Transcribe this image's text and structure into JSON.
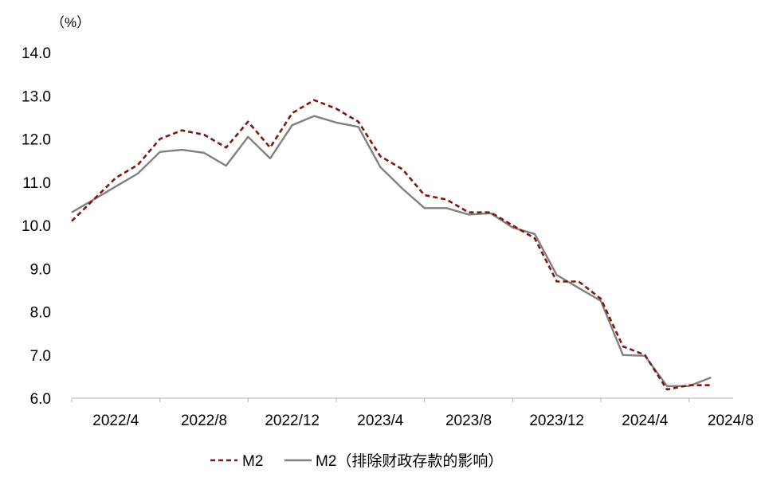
{
  "chart_data": {
    "type": "line",
    "unit_label": "（%）",
    "x": [
      "2022/3",
      "2022/4",
      "2022/5",
      "2022/6",
      "2022/7",
      "2022/8",
      "2022/9",
      "2022/10",
      "2022/11",
      "2022/12",
      "2023/1",
      "2023/2",
      "2023/3",
      "2023/4",
      "2023/5",
      "2023/6",
      "2023/7",
      "2023/8",
      "2023/9",
      "2023/10",
      "2023/11",
      "2023/12",
      "2024/1",
      "2024/2",
      "2024/3",
      "2024/4",
      "2024/5",
      "2024/6",
      "2024/7",
      "2024/8"
    ],
    "x_tick_labels": [
      "2022/4",
      "2022/8",
      "2022/12",
      "2023/4",
      "2023/8",
      "2023/12",
      "2024/4",
      "2024/8"
    ],
    "ylim": [
      6.0,
      14.0
    ],
    "y_tick_labels": [
      "6.0",
      "7.0",
      "8.0",
      "9.0",
      "10.0",
      "11.0",
      "12.0",
      "13.0",
      "14.0"
    ],
    "grid": false,
    "legend_position": "bottom",
    "series": [
      {
        "name": "M2",
        "style": "dashed",
        "color": "#7B1A0E",
        "values": [
          10.1,
          10.6,
          11.1,
          11.4,
          12.0,
          12.2,
          12.1,
          11.8,
          12.4,
          11.8,
          12.6,
          12.9,
          12.7,
          12.4,
          11.6,
          11.3,
          10.7,
          10.6,
          10.3,
          10.3,
          10.0,
          9.7,
          8.7,
          8.7,
          8.3,
          7.2,
          7.0,
          6.2,
          6.3,
          6.3
        ]
      },
      {
        "name": "M2（排除财政存款的影响）",
        "style": "solid",
        "color": "#808080",
        "values": [
          10.3,
          10.6,
          10.9,
          11.2,
          11.7,
          11.75,
          11.68,
          11.38,
          12.05,
          11.55,
          12.32,
          12.53,
          12.38,
          12.28,
          11.35,
          10.85,
          10.4,
          10.4,
          10.25,
          10.28,
          9.95,
          9.8,
          8.85,
          8.55,
          8.25,
          7.0,
          6.98,
          6.28,
          6.28,
          6.48
        ]
      }
    ]
  }
}
